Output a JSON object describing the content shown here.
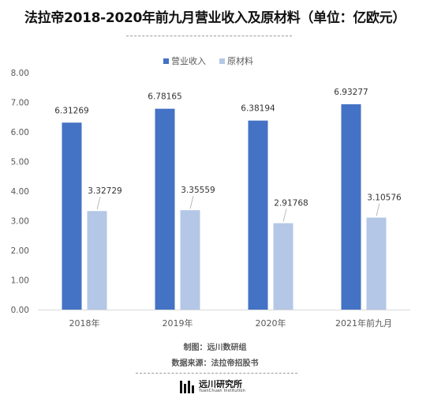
{
  "title": "法拉帝2018-2020年前九月营业收入及原材料（单位：亿欧元）",
  "footer": {
    "maker": "制图：远川数研组",
    "source": "数据来源：法拉帝招股书"
  },
  "logo": {
    "name_cn": "远川研究所",
    "name_en": "YuanChuan Institution"
  },
  "colors": {
    "revenue": "#4472c4",
    "materials": "#b4c7e7",
    "axis_text": "#595959",
    "gridline": "#d9d9d9"
  },
  "chart_data": {
    "type": "bar",
    "categories": [
      "2018年",
      "2019年",
      "2020年",
      "2021年前九月"
    ],
    "series": [
      {
        "name": "营业收入",
        "values": [
          6.31269,
          6.78165,
          6.38194,
          6.93277
        ],
        "labels": [
          "6.31269",
          "6.78165",
          "6.38194",
          "6.93277"
        ]
      },
      {
        "name": "原材料",
        "values": [
          3.32729,
          3.35559,
          2.91768,
          3.10576
        ],
        "labels": [
          "3.32729",
          "3.35559",
          "2.91768",
          "3.10576"
        ]
      }
    ],
    "ylim": [
      0,
      8
    ],
    "yticks": [
      "0.00",
      "1.00",
      "2.00",
      "3.00",
      "4.00",
      "5.00",
      "6.00",
      "7.00",
      "8.00"
    ],
    "legend_position": "top-center",
    "grid": false
  }
}
